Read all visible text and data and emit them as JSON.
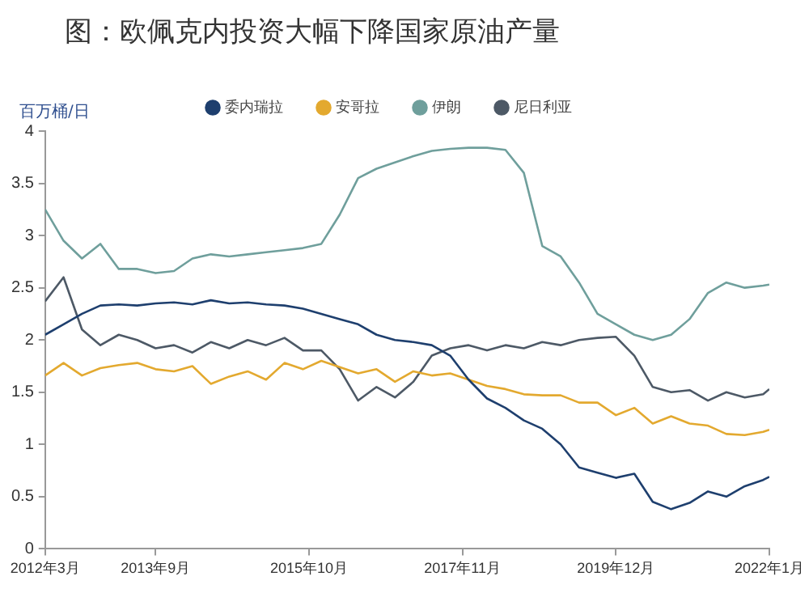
{
  "chart_data": {
    "type": "line",
    "title": "图：欧佩克内投资大幅下降国家原油产量",
    "ylabel": "百万桶/日",
    "x": [
      "2012-03",
      "2012-06",
      "2012-09",
      "2012-12",
      "2013-03",
      "2013-06",
      "2013-09",
      "2013-12",
      "2014-03",
      "2014-06",
      "2014-09",
      "2014-12",
      "2015-03",
      "2015-06",
      "2015-09",
      "2015-12",
      "2016-03",
      "2016-06",
      "2016-09",
      "2016-12",
      "2017-03",
      "2017-06",
      "2017-09",
      "2017-12",
      "2018-03",
      "2018-06",
      "2018-09",
      "2018-12",
      "2019-03",
      "2019-06",
      "2019-09",
      "2019-12",
      "2020-03",
      "2020-06",
      "2020-09",
      "2020-12",
      "2021-03",
      "2021-06",
      "2021-09",
      "2021-12",
      "2022-01"
    ],
    "series": [
      {
        "name": "委内瑞拉",
        "color": "#1e3f6e",
        "values": [
          2.05,
          2.15,
          2.25,
          2.33,
          2.34,
          2.33,
          2.35,
          2.36,
          2.34,
          2.38,
          2.35,
          2.36,
          2.34,
          2.33,
          2.3,
          2.25,
          2.2,
          2.15,
          2.05,
          2.0,
          1.98,
          1.95,
          1.85,
          1.62,
          1.44,
          1.35,
          1.23,
          1.15,
          1.0,
          0.78,
          0.73,
          0.68,
          0.72,
          0.45,
          0.38,
          0.44,
          0.55,
          0.5,
          0.6,
          0.66,
          0.69
        ]
      },
      {
        "name": "安哥拉",
        "color": "#e3a92f",
        "values": [
          1.66,
          1.78,
          1.66,
          1.73,
          1.76,
          1.78,
          1.72,
          1.7,
          1.75,
          1.58,
          1.65,
          1.7,
          1.62,
          1.78,
          1.72,
          1.8,
          1.74,
          1.68,
          1.72,
          1.6,
          1.7,
          1.66,
          1.68,
          1.62,
          1.56,
          1.53,
          1.48,
          1.47,
          1.47,
          1.4,
          1.4,
          1.28,
          1.35,
          1.2,
          1.27,
          1.2,
          1.18,
          1.1,
          1.09,
          1.12,
          1.14
        ]
      },
      {
        "name": "伊朗",
        "color": "#6f9f9c",
        "values": [
          3.25,
          2.95,
          2.78,
          2.92,
          2.68,
          2.68,
          2.64,
          2.66,
          2.78,
          2.82,
          2.8,
          2.82,
          2.84,
          2.86,
          2.88,
          2.92,
          3.2,
          3.55,
          3.64,
          3.7,
          3.76,
          3.81,
          3.83,
          3.84,
          3.84,
          3.82,
          3.6,
          2.9,
          2.8,
          2.55,
          2.25,
          2.15,
          2.05,
          2.0,
          2.05,
          2.2,
          2.45,
          2.55,
          2.5,
          2.52,
          2.53
        ]
      },
      {
        "name": "尼日利亚",
        "color": "#4d5966",
        "values": [
          2.37,
          2.6,
          2.1,
          1.95,
          2.05,
          2.0,
          1.92,
          1.95,
          1.88,
          1.98,
          1.92,
          2.0,
          1.95,
          2.02,
          1.9,
          1.9,
          1.72,
          1.42,
          1.55,
          1.45,
          1.6,
          1.85,
          1.92,
          1.95,
          1.9,
          1.95,
          1.92,
          1.98,
          1.95,
          2.0,
          2.02,
          2.03,
          1.85,
          1.55,
          1.5,
          1.52,
          1.42,
          1.5,
          1.45,
          1.48,
          1.53
        ]
      }
    ],
    "xlim": [
      "2012-03",
      "2022-01"
    ],
    "xticks": [
      {
        "value": "2012-03",
        "label": "2012年3月"
      },
      {
        "value": "2013-09",
        "label": "2013年9月"
      },
      {
        "value": "2015-10",
        "label": "2015年10月"
      },
      {
        "value": "2017-11",
        "label": "2017年11月"
      },
      {
        "value": "2019-12",
        "label": "2019年12月"
      },
      {
        "value": "2022-01",
        "label": "2022年1月"
      }
    ],
    "ylim": [
      0,
      4
    ],
    "yticks": [
      0,
      0.5,
      1,
      1.5,
      2,
      2.5,
      3,
      3.5,
      4
    ],
    "grid": false,
    "legend": "top",
    "marker": "none"
  }
}
